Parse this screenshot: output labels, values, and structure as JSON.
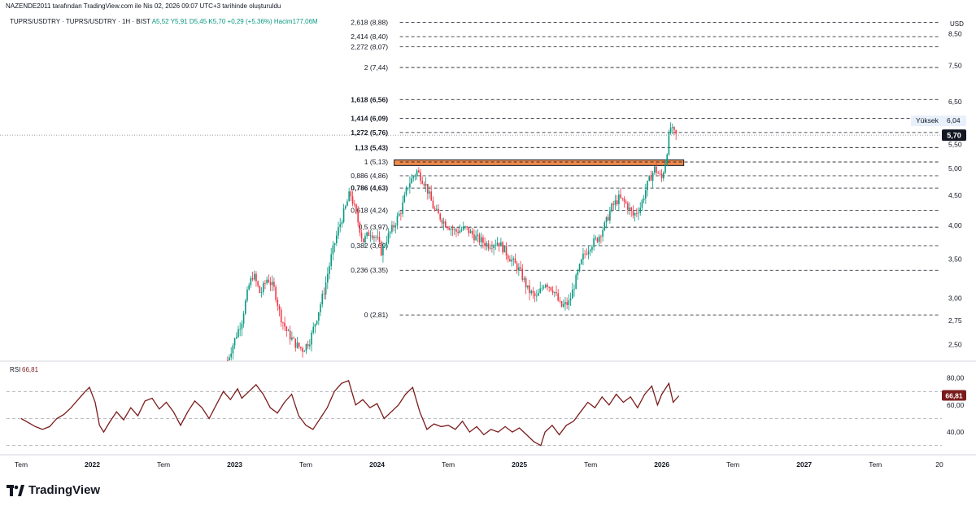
{
  "header": {
    "author_line": "NAZENDE2011 tarafından TradingView.com ile Nis 02, 2026 09:07 UTC+3 tarihinde oluşturuldu",
    "symbol_line": "TUPRS/USDTRY · TUPRS/USDTRY · 1H · BIST",
    "ohlc": "A5,52  Y5,91  D5,45  K5,70  +0,29 (+5,36%)",
    "volume": "Hacim177,06M"
  },
  "brand": {
    "name": "TradingView",
    "icon": "tradingview-logo-icon"
  },
  "chart_data": [
    {
      "type": "candlestick",
      "title": "TUPRS/USDTRY",
      "currency_label": "USD",
      "y_scale": "log",
      "ylim": [
        2.35,
        9.1
      ],
      "y_ticks": [
        {
          "v": 8.5,
          "label": "8,50"
        },
        {
          "v": 7.5,
          "label": "7,50"
        },
        {
          "v": 6.5,
          "label": "6,50"
        },
        {
          "v": 5.5,
          "label": "5,50"
        },
        {
          "v": 5.0,
          "label": "5,00"
        },
        {
          "v": 4.5,
          "label": "4,50"
        },
        {
          "v": 4.0,
          "label": "4,00"
        },
        {
          "v": 3.5,
          "label": "3,50"
        },
        {
          "v": 3.0,
          "label": "3,00"
        },
        {
          "v": 2.75,
          "label": "2,75"
        },
        {
          "v": 2.5,
          "label": "2,50"
        }
      ],
      "fib_levels": [
        {
          "ratio": "2,618",
          "price": 8.88,
          "label": "2,618 (8,88)",
          "bold": false
        },
        {
          "ratio": "2,414",
          "price": 8.4,
          "label": "2,414 (8,40)",
          "bold": false
        },
        {
          "ratio": "2,272",
          "price": 8.07,
          "label": "2,272 (8,07)",
          "bold": false
        },
        {
          "ratio": "2",
          "price": 7.44,
          "label": "2 (7,44)",
          "bold": false
        },
        {
          "ratio": "1,618",
          "price": 6.56,
          "label": "1,618 (6,56)",
          "bold": true
        },
        {
          "ratio": "1,414",
          "price": 6.09,
          "label": "1,414 (6,09)",
          "bold": true
        },
        {
          "ratio": "1,272",
          "price": 5.76,
          "label": "1,272 (5,76)",
          "bold": true
        },
        {
          "ratio": "1,13",
          "price": 5.43,
          "label": "1,13 (5,43)",
          "bold": true
        },
        {
          "ratio": "1",
          "price": 5.13,
          "label": "1 (5,13)",
          "bold": false
        },
        {
          "ratio": "0,886",
          "price": 4.86,
          "label": "0,886 (4,86)",
          "bold": false
        },
        {
          "ratio": "0,786",
          "price": 4.63,
          "label": "0,786 (4,63)",
          "bold": true
        },
        {
          "ratio": "0,618",
          "price": 4.24,
          "label": "0,618 (4,24)",
          "bold": false
        },
        {
          "ratio": "0,5",
          "price": 3.97,
          "label": "0,5 (3,97)",
          "bold": false
        },
        {
          "ratio": "0,382",
          "price": 3.69,
          "label": "0,382 (3,69)",
          "bold": false
        },
        {
          "ratio": "0,236",
          "price": 3.35,
          "label": "0,236 (3,35)",
          "bold": false
        },
        {
          "ratio": "0",
          "price": 2.81,
          "label": "0 (2,81)",
          "bold": false
        }
      ],
      "resistance_zone": {
        "from": 5.06,
        "to": 5.17,
        "color": "#f08a4b"
      },
      "high_label": {
        "text": "Yüksek",
        "price": 6.04,
        "value_label": "6,04"
      },
      "last_price": {
        "price": 5.7,
        "label": "5,70",
        "color": "#131722"
      },
      "x_ticks": [
        {
          "t": 0.0,
          "label": "Tem",
          "bold": false
        },
        {
          "t": 0.5,
          "label": "2022",
          "bold": true
        },
        {
          "t": 1.0,
          "label": "Tem",
          "bold": false
        },
        {
          "t": 1.5,
          "label": "2023",
          "bold": true
        },
        {
          "t": 2.0,
          "label": "Tem",
          "bold": false
        },
        {
          "t": 2.5,
          "label": "2024",
          "bold": true
        },
        {
          "t": 3.0,
          "label": "Tem",
          "bold": false
        },
        {
          "t": 3.5,
          "label": "2025",
          "bold": true
        },
        {
          "t": 4.0,
          "label": "Tem",
          "bold": false
        },
        {
          "t": 4.5,
          "label": "2026",
          "bold": true
        },
        {
          "t": 5.0,
          "label": "Tem",
          "bold": false
        },
        {
          "t": 5.5,
          "label": "2027",
          "bold": true
        },
        {
          "t": 6.0,
          "label": "Tem",
          "bold": false
        },
        {
          "t": 6.45,
          "label": "20",
          "bold": false
        }
      ],
      "price_path": [
        [
          1.45,
          2.35
        ],
        [
          1.5,
          2.55
        ],
        [
          1.55,
          2.75
        ],
        [
          1.6,
          3.15
        ],
        [
          1.63,
          3.3
        ],
        [
          1.68,
          3.05
        ],
        [
          1.73,
          3.25
        ],
        [
          1.78,
          3.1
        ],
        [
          1.82,
          2.8
        ],
        [
          1.87,
          2.62
        ],
        [
          1.93,
          2.5
        ],
        [
          1.98,
          2.45
        ],
        [
          2.03,
          2.55
        ],
        [
          2.08,
          2.8
        ],
        [
          2.13,
          3.1
        ],
        [
          2.18,
          3.55
        ],
        [
          2.23,
          3.95
        ],
        [
          2.28,
          4.3
        ],
        [
          2.31,
          4.55
        ],
        [
          2.35,
          4.2
        ],
        [
          2.4,
          3.75
        ],
        [
          2.45,
          3.9
        ],
        [
          2.5,
          3.8
        ],
        [
          2.53,
          3.6
        ],
        [
          2.57,
          3.8
        ],
        [
          2.62,
          4.0
        ],
        [
          2.67,
          4.25
        ],
        [
          2.72,
          4.7
        ],
        [
          2.78,
          4.95
        ],
        [
          2.84,
          4.7
        ],
        [
          2.9,
          4.25
        ],
        [
          2.97,
          4.05
        ],
        [
          3.05,
          3.9
        ],
        [
          3.12,
          3.95
        ],
        [
          3.2,
          3.8
        ],
        [
          3.28,
          3.7
        ],
        [
          3.35,
          3.75
        ],
        [
          3.42,
          3.55
        ],
        [
          3.5,
          3.35
        ],
        [
          3.56,
          3.1
        ],
        [
          3.62,
          3.0
        ],
        [
          3.68,
          3.2
        ],
        [
          3.74,
          3.1
        ],
        [
          3.79,
          2.9
        ],
        [
          3.85,
          2.95
        ],
        [
          3.9,
          3.25
        ],
        [
          3.95,
          3.55
        ],
        [
          4.0,
          3.7
        ],
        [
          4.05,
          3.8
        ],
        [
          4.1,
          4.0
        ],
        [
          4.15,
          4.3
        ],
        [
          4.2,
          4.45
        ],
        [
          4.25,
          4.35
        ],
        [
          4.3,
          4.15
        ],
        [
          4.35,
          4.3
        ],
        [
          4.4,
          4.7
        ],
        [
          4.45,
          5.0
        ],
        [
          4.5,
          4.8
        ],
        [
          4.53,
          5.2
        ],
        [
          4.56,
          5.9
        ],
        [
          4.58,
          5.75
        ],
        [
          4.6,
          5.7
        ]
      ]
    },
    {
      "type": "line",
      "title": "RSI",
      "current_label": "66,81",
      "value": 66.81,
      "ylim": [
        25,
        90
      ],
      "y_ticks": [
        {
          "v": 80,
          "label": "80,00"
        },
        {
          "v": 60,
          "label": "60,00"
        },
        {
          "v": 40,
          "label": "40,00"
        }
      ],
      "bands": [
        70,
        50,
        30
      ],
      "series": [
        [
          0.0,
          50
        ],
        [
          0.05,
          47
        ],
        [
          0.1,
          44
        ],
        [
          0.15,
          42
        ],
        [
          0.2,
          44
        ],
        [
          0.25,
          50
        ],
        [
          0.3,
          53
        ],
        [
          0.35,
          58
        ],
        [
          0.4,
          64
        ],
        [
          0.45,
          70
        ],
        [
          0.48,
          73
        ],
        [
          0.52,
          62
        ],
        [
          0.55,
          45
        ],
        [
          0.58,
          40
        ],
        [
          0.62,
          47
        ],
        [
          0.67,
          55
        ],
        [
          0.72,
          49
        ],
        [
          0.77,
          58
        ],
        [
          0.82,
          52
        ],
        [
          0.87,
          63
        ],
        [
          0.92,
          65
        ],
        [
          0.97,
          57
        ],
        [
          1.02,
          62
        ],
        [
          1.07,
          55
        ],
        [
          1.12,
          45
        ],
        [
          1.17,
          55
        ],
        [
          1.22,
          63
        ],
        [
          1.27,
          58
        ],
        [
          1.32,
          50
        ],
        [
          1.37,
          60
        ],
        [
          1.42,
          70
        ],
        [
          1.47,
          64
        ],
        [
          1.52,
          72
        ],
        [
          1.55,
          65
        ],
        [
          1.6,
          70
        ],
        [
          1.65,
          75
        ],
        [
          1.7,
          68
        ],
        [
          1.75,
          58
        ],
        [
          1.8,
          54
        ],
        [
          1.85,
          62
        ],
        [
          1.9,
          68
        ],
        [
          1.95,
          52
        ],
        [
          2.0,
          45
        ],
        [
          2.05,
          42
        ],
        [
          2.1,
          50
        ],
        [
          2.15,
          58
        ],
        [
          2.2,
          70
        ],
        [
          2.25,
          76
        ],
        [
          2.3,
          78
        ],
        [
          2.35,
          60
        ],
        [
          2.4,
          64
        ],
        [
          2.45,
          58
        ],
        [
          2.5,
          61
        ],
        [
          2.55,
          50
        ],
        [
          2.6,
          55
        ],
        [
          2.65,
          60
        ],
        [
          2.7,
          68
        ],
        [
          2.75,
          73
        ],
        [
          2.8,
          55
        ],
        [
          2.85,
          42
        ],
        [
          2.9,
          46
        ],
        [
          2.95,
          44
        ],
        [
          3.0,
          45
        ],
        [
          3.05,
          42
        ],
        [
          3.1,
          48
        ],
        [
          3.15,
          40
        ],
        [
          3.2,
          44
        ],
        [
          3.25,
          38
        ],
        [
          3.3,
          42
        ],
        [
          3.35,
          40
        ],
        [
          3.4,
          44
        ],
        [
          3.45,
          40
        ],
        [
          3.5,
          43
        ],
        [
          3.55,
          38
        ],
        [
          3.6,
          33
        ],
        [
          3.65,
          30
        ],
        [
          3.68,
          40
        ],
        [
          3.73,
          45
        ],
        [
          3.78,
          38
        ],
        [
          3.83,
          45
        ],
        [
          3.88,
          48
        ],
        [
          3.93,
          55
        ],
        [
          3.98,
          62
        ],
        [
          4.03,
          58
        ],
        [
          4.08,
          66
        ],
        [
          4.13,
          60
        ],
        [
          4.18,
          68
        ],
        [
          4.23,
          62
        ],
        [
          4.28,
          66
        ],
        [
          4.33,
          58
        ],
        [
          4.38,
          68
        ],
        [
          4.43,
          74
        ],
        [
          4.47,
          60
        ],
        [
          4.5,
          68
        ],
        [
          4.55,
          76
        ],
        [
          4.58,
          62
        ],
        [
          4.62,
          66.81
        ]
      ]
    }
  ],
  "colors": {
    "up": "#089981",
    "down": "#f23645",
    "fib": "#131722",
    "grid": "#e0e3eb",
    "rsi_line": "#7b1c1c",
    "rsi_label_bg": "#7b1c1c",
    "high_label_bg": "#e8f0fb",
    "zone": "#f08a4b"
  }
}
